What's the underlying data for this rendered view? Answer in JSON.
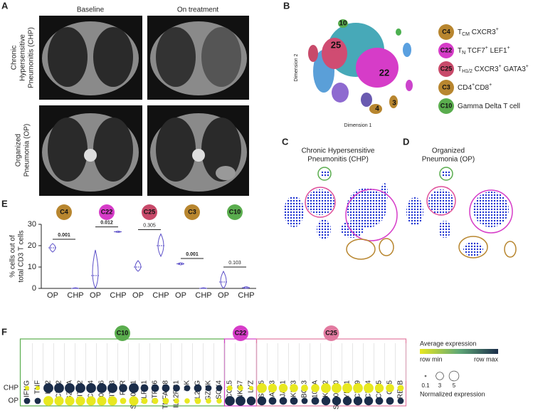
{
  "panels": {
    "a": "A",
    "b": "B",
    "c": "C",
    "d": "D",
    "e": "E",
    "f": "F"
  },
  "ct": {
    "columns": [
      "Baseline",
      "On treatment"
    ],
    "rows": [
      {
        "lines": [
          "Chronic",
          "Hypersensitive",
          "Pneumonitis (CHP)"
        ]
      },
      {
        "lines": [
          "Organized",
          "Pneumonia (OP)"
        ]
      }
    ]
  },
  "umap": {
    "x_label": "Dimension 1",
    "y_label": "Dimension 2",
    "cluster_labels": [
      {
        "text": "10",
        "color": "#5aad4e"
      },
      {
        "text": "25",
        "color": "#c84a6a"
      },
      {
        "text": "22",
        "color": "#d63cc8"
      },
      {
        "text": "4",
        "color": "#b8862f"
      },
      {
        "text": "3",
        "color": "#b8862f"
      }
    ]
  },
  "legend": [
    {
      "id": "C4",
      "color": "#b8862f",
      "label": [
        {
          "text": "T"
        },
        {
          "text": "CM",
          "pos": "sub"
        },
        {
          "text": " CXCR3"
        },
        {
          "text": "+",
          "pos": "sup"
        }
      ]
    },
    {
      "id": "C22",
      "color": "#d63cc8",
      "label": [
        {
          "text": "T"
        },
        {
          "text": "N",
          "pos": "sub"
        },
        {
          "text": " TCF7"
        },
        {
          "text": "+",
          "pos": "sup"
        },
        {
          "text": " LEF1"
        },
        {
          "text": "+",
          "pos": "sup"
        }
      ]
    },
    {
      "id": "C25",
      "color": "#c84a6a",
      "label": [
        {
          "text": "T"
        },
        {
          "text": "H1/2",
          "pos": "sub"
        },
        {
          "text": " CXCR3"
        },
        {
          "text": "+",
          "pos": "sup"
        },
        {
          "text": " GATA3"
        },
        {
          "text": "+",
          "pos": "sup"
        }
      ]
    },
    {
      "id": "C3",
      "color": "#b8862f",
      "label": [
        {
          "text": "CD4"
        },
        {
          "text": "+",
          "pos": "sup"
        },
        {
          "text": "CD8"
        },
        {
          "text": "+",
          "pos": "sup"
        }
      ]
    },
    {
      "id": "C10",
      "color": "#5aad4e",
      "label": [
        {
          "text": "Gamma Delta T cell"
        }
      ]
    }
  ],
  "tsne": [
    {
      "lines": [
        "Chronic Hypersensitive",
        "Pneumonitis (CHP)"
      ]
    },
    {
      "lines": [
        "Organized",
        "Pneumonia (OP)"
      ]
    }
  ],
  "chart_data": [
    {
      "type": "violin",
      "y_label_lines": [
        "% cells out of",
        "total CD3 T cells"
      ],
      "categories": [
        "OP",
        "CHP"
      ],
      "color": "#5b4fc8",
      "ylim": [
        0,
        30
      ],
      "yticks": [
        0,
        10,
        20,
        30
      ],
      "groups": [
        {
          "name": "C4",
          "color": "#b8862f",
          "p": 0.001,
          "p_bold": true,
          "medians": [
            19,
            0
          ],
          "mins": [
            17,
            0
          ],
          "maxs": [
            21,
            0.3
          ]
        },
        {
          "name": "C22",
          "color": "#d63cc8",
          "p": 0.012,
          "p_bold": true,
          "medians": [
            6,
            26.5
          ],
          "mins": [
            0,
            26.2
          ],
          "maxs": [
            18,
            26.8
          ]
        },
        {
          "name": "C25",
          "color": "#c84a6a",
          "p": 0.305,
          "p_bold": false,
          "medians": [
            10,
            20
          ],
          "mins": [
            8,
            15
          ],
          "maxs": [
            13,
            25.5
          ]
        },
        {
          "name": "C3",
          "color": "#b8862f",
          "p": 0.001,
          "p_bold": true,
          "medians": [
            11.5,
            0
          ],
          "mins": [
            11,
            0
          ],
          "maxs": [
            12,
            0.3
          ]
        },
        {
          "name": "C10",
          "color": "#5aad4e",
          "p": 0.103,
          "p_bold": false,
          "medians": [
            3,
            0.3
          ],
          "mins": [
            0,
            0
          ],
          "maxs": [
            8,
            0.8
          ]
        }
      ]
    },
    {
      "type": "dotplot",
      "clusters": [
        {
          "name": "C10",
          "color": "#5aad4e",
          "count": 19
        },
        {
          "name": "C22",
          "color": "#d63cc8",
          "count": 3
        },
        {
          "name": "C25",
          "color": "#e27aa0",
          "count": 14
        }
      ],
      "genes": [
        "IFNG",
        "TNF",
        "IL32",
        "CD52",
        "GZMA",
        "IFITM2",
        "CCL4",
        "S100A6",
        "IFITM3",
        "FGR",
        "S100A11",
        "KLRC1",
        "PTPN6",
        "TNFAIP8",
        "IL12RB1",
        "ILK",
        "IL2RG",
        "GZMK",
        "SOX4",
        "CCL5",
        "NKG7",
        "LYZ",
        "HSPA5",
        "GATA3",
        "JAK1",
        "KLF3",
        "BCL3",
        "IL10RA",
        "KLF2",
        "S100A10",
        "YBX1",
        "CD99",
        "CD74",
        "CCL5",
        "CD5",
        "RELB"
      ],
      "series": [
        {
          "name": "CHP",
          "sizes": [
            1,
            1,
            5,
            5,
            5,
            5,
            5,
            5,
            5,
            3.5,
            5,
            3,
            3,
            3,
            2.5,
            2,
            3,
            2,
            2,
            1.5,
            1.5,
            1,
            5,
            4,
            4,
            3.5,
            2.5,
            3.5,
            5,
            5,
            5,
            5,
            5,
            4,
            3.5,
            2
          ],
          "expression": [
            0,
            0,
            1,
            1,
            1,
            1,
            1,
            1,
            1,
            1,
            1,
            1,
            1,
            1,
            1,
            1,
            1,
            1,
            1,
            0,
            0,
            0,
            0,
            0,
            0,
            0,
            0,
            0,
            0,
            0,
            0,
            0,
            0,
            0,
            0,
            0
          ]
        },
        {
          "name": "OP",
          "sizes": [
            2,
            2,
            5,
            4.5,
            4.5,
            4.5,
            4.5,
            4.5,
            4.5,
            2,
            4.5,
            2,
            2,
            2,
            1.5,
            1.5,
            2,
            1.5,
            1.5,
            5,
            5,
            4,
            4,
            3,
            3,
            3,
            2,
            3,
            4,
            4,
            4,
            4,
            4,
            3,
            3,
            2
          ],
          "expression": [
            1,
            1,
            0,
            0,
            0,
            0,
            0,
            0,
            0,
            0,
            0,
            0,
            0,
            0,
            0,
            0,
            0,
            0,
            0,
            1,
            1,
            1,
            1,
            1,
            1,
            1,
            1,
            1,
            1,
            1,
            1,
            1,
            1,
            1,
            1,
            1
          ]
        }
      ],
      "color_title": "Average expression",
      "color_labels": [
        "row min",
        "row max"
      ],
      "colors": [
        "#e8e820",
        "#5fa877",
        "#1b2d4a"
      ],
      "size_title": "Normalized expression",
      "size_ticks": [
        0.1,
        3,
        5
      ]
    }
  ]
}
